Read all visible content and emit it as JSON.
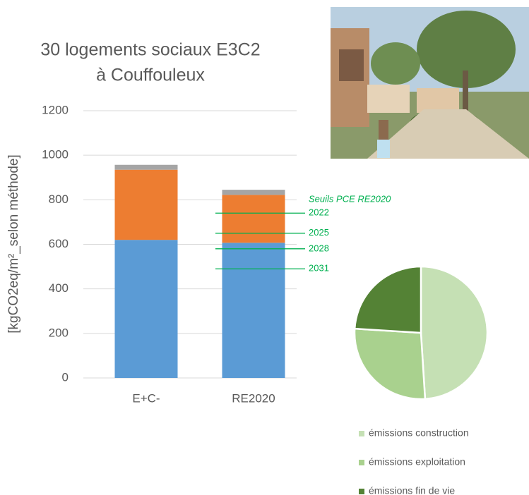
{
  "chart_data": [
    {
      "type": "bar",
      "stacked": true,
      "title": [
        "30 logements sociaux E3C2",
        "à Couffouleux"
      ],
      "ylabel": "[kgCO2eq/m²_selon méthode]",
      "categories": [
        "E+C-",
        "RE2020"
      ],
      "series": [
        {
          "color": "#5b9bd5",
          "values": [
            620,
            607
          ]
        },
        {
          "color": "#ed7d31",
          "values": [
            315,
            215
          ]
        },
        {
          "color": "#a5a5a5",
          "values": [
            22,
            23
          ]
        }
      ],
      "ylim": [
        0,
        1200
      ],
      "yticks": [
        0,
        200,
        400,
        600,
        800,
        1000,
        1200
      ],
      "grid": true,
      "thresholds": {
        "title": "Seuils PCE RE2020",
        "color": "#00b050",
        "category": 1,
        "values": [
          740,
          650,
          580,
          490
        ],
        "labels": [
          "2022",
          "2025",
          "2028",
          "2031"
        ]
      }
    },
    {
      "type": "pie",
      "categories": [
        "émissions construction",
        "émissions exploitation",
        "émissions fin de vie"
      ],
      "values": [
        49,
        27,
        24
      ],
      "colors": [
        "#c5e0b4",
        "#a9d18e",
        "#548235"
      ],
      "legend": "bottom"
    }
  ]
}
